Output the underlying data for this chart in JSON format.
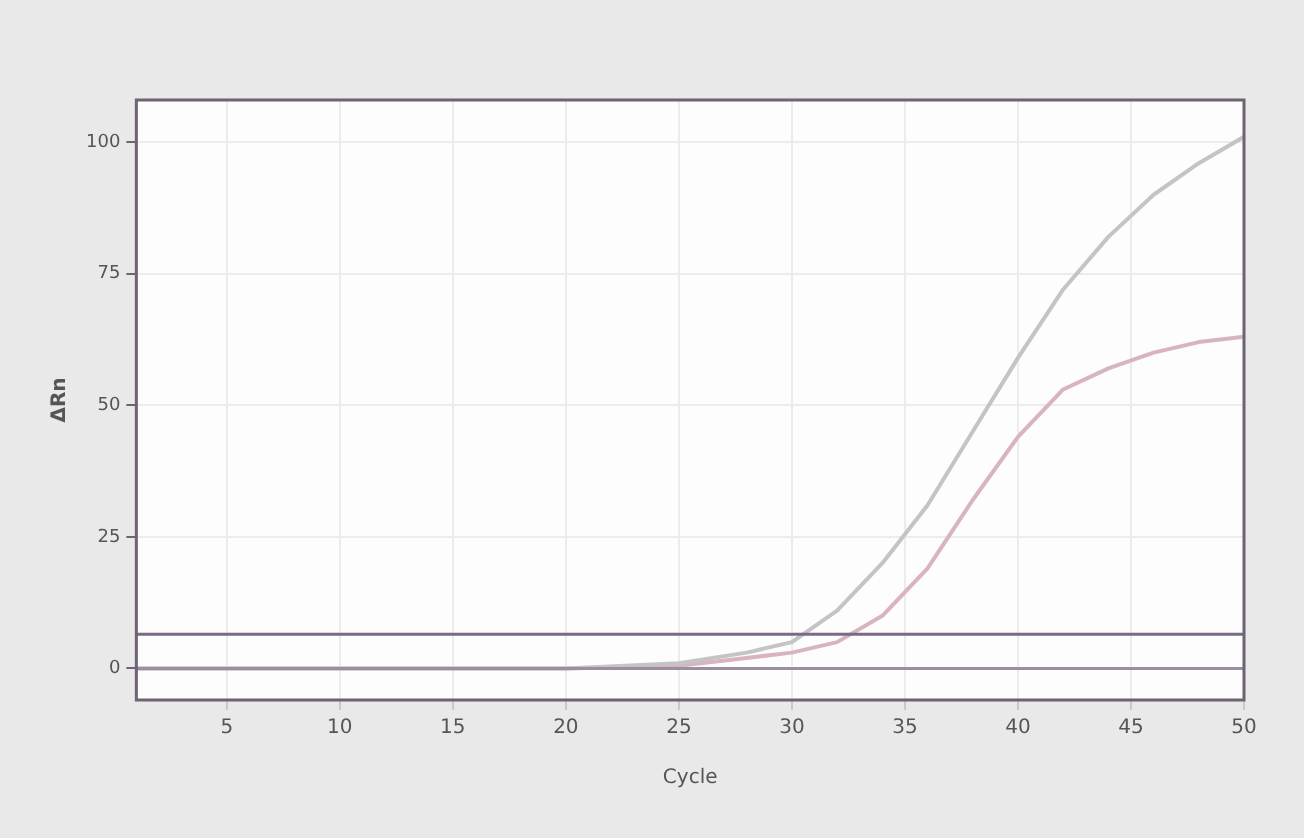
{
  "chart_data": {
    "type": "line",
    "xlabel": "Cycle",
    "ylabel": "ΔRn",
    "xlim": [
      1,
      50
    ],
    "ylim": [
      -6,
      108
    ],
    "xticks": [
      5,
      10,
      15,
      20,
      25,
      30,
      35,
      40,
      45,
      50
    ],
    "yticks": [
      0,
      25,
      50,
      75,
      100
    ],
    "grid": true,
    "legend": false,
    "marker": "none",
    "line_style": "solid",
    "series": [
      {
        "color": "#c4c4c8",
        "x": [
          1,
          20,
          25,
          28,
          30,
          32,
          34,
          36,
          38,
          40,
          42,
          44,
          46,
          48,
          50
        ],
        "values": [
          0,
          0,
          1,
          3,
          5,
          11,
          20,
          31,
          45,
          59,
          72,
          82,
          90,
          96,
          101
        ]
      },
      {
        "color": "#d8b4bf",
        "x": [
          1,
          20,
          25,
          28,
          30,
          32,
          34,
          36,
          38,
          40,
          42,
          44,
          46,
          48,
          50
        ],
        "values": [
          0,
          0,
          0.5,
          2,
          3,
          5,
          10,
          19,
          32,
          44,
          53,
          57,
          60,
          62,
          63
        ]
      }
    ],
    "ref_lines": [
      {
        "axis": "y",
        "value": 6.5,
        "color": "#7a6a82"
      },
      {
        "axis": "y",
        "value": 0,
        "color": "#9a8ea0"
      }
    ]
  }
}
